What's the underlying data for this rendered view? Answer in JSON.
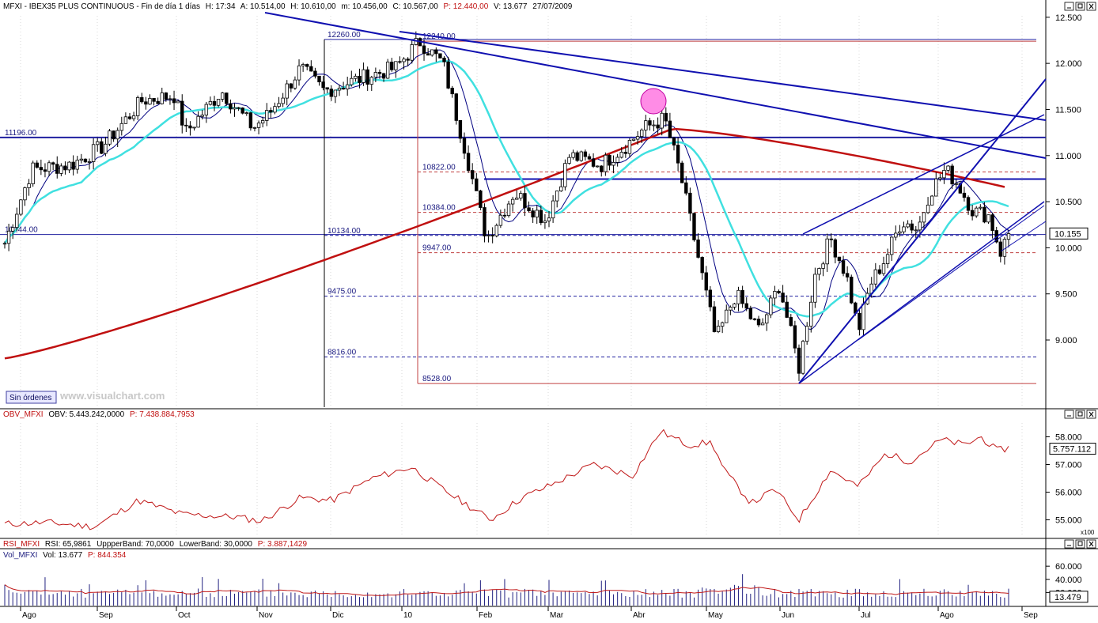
{
  "colors": {
    "price": "#000000",
    "ma_short": "#000080",
    "ma_mid": "#40e0e0",
    "ma_long": "#c01010",
    "trendline": "#1010b0",
    "level_blue": "#2020a0",
    "level_red": "#c04040",
    "obv": "#c01818",
    "volume": "#202080",
    "volume_avg": "#c01818",
    "highlight": "#ff66dd",
    "label_text": "#1a1a80"
  },
  "header": {
    "main": "MFXI - IBEX35 PLUS CONTINUOUS - Fin de día 1 días",
    "h": "H: 17:34",
    "a": "A: 10.514,00",
    "hi": "H: 10.610,00",
    "m": "m: 10.456,00",
    "c": "C: 10.567,00",
    "p": "P: 12.440,00",
    "v": "V: 13.677",
    "date": "27/07/2009"
  },
  "badge": "Sin órdenes",
  "watermark": "www.visualchart.com",
  "window_icons": [
    "minimize-icon",
    "restore-icon",
    "close-icon"
  ],
  "obv_header": {
    "name": "OBV_MFXI",
    "obv": "OBV: 5.443.242,0000",
    "p": "P: 7.438.884,7953"
  },
  "rsi_header": {
    "name": "RSI_MFXI",
    "rsi": "RSI: 65,9861",
    "upper": "UppperBand: 70,0000",
    "lower": "LowerBand: 30,0000",
    "p": "P: 3.887,1429"
  },
  "vol_header": {
    "name": "Vol_MFXI",
    "vol": "Vol: 13.677",
    "p": "P: 844.354"
  },
  "x100_label": "x100",
  "chart_data": [
    {
      "type": "candlestick",
      "panel": "price",
      "x_ticks": [
        "Ago",
        "Sep",
        "Oct",
        "Nov",
        "Dic",
        "10",
        "Feb",
        "Mar",
        "Abr",
        "May",
        "Jun",
        "Jul",
        "Ago",
        "Sep"
      ],
      "y_ticks": [
        "12.500",
        "12.000",
        "11.500",
        "11.000",
        "10.500",
        "10.000",
        "9.500",
        "9.000"
      ],
      "ylim": [
        8400,
        12550
      ],
      "current_value": "10.155",
      "levels": [
        {
          "value": 12260,
          "label": "12260.00"
        },
        {
          "value": 12240,
          "label": "12240.00"
        },
        {
          "value": 11196,
          "label": "11196.00"
        },
        {
          "value": 10822,
          "label": "10822.00"
        },
        {
          "value": 10384,
          "label": "10384.00"
        },
        {
          "value": 10144,
          "label": "10144.00"
        },
        {
          "value": 10134,
          "label": "10134.00"
        },
        {
          "value": 9947,
          "label": "9947.00"
        },
        {
          "value": 9475,
          "label": "9475.00"
        },
        {
          "value": 8816,
          "label": "8816.00"
        },
        {
          "value": 8528,
          "label": "8528.00"
        }
      ],
      "key_points": [
        {
          "x": "Ago",
          "close": 10000
        },
        {
          "x": "Sep",
          "close": 11000
        },
        {
          "x": "Oct",
          "close": 11500
        },
        {
          "x": "Nov",
          "close": 11600
        },
        {
          "x": "Dic",
          "close": 11800
        },
        {
          "x": "10",
          "close": 12220
        },
        {
          "x": "Feb",
          "close": 10100
        },
        {
          "x": "Mar",
          "close": 11050
        },
        {
          "x": "Abr",
          "close": 11250
        },
        {
          "x": "May",
          "close": 9400
        },
        {
          "x": "Jun",
          "close": 8900
        },
        {
          "x": "Jul",
          "close": 9500
        },
        {
          "x": "Ago",
          "close": 10900
        },
        {
          "x": "Sep",
          "close": 10155
        }
      ]
    },
    {
      "type": "line",
      "panel": "obv",
      "y_ticks": [
        "58.000",
        "57.000",
        "56.000",
        "55.000"
      ],
      "ylim": [
        54500,
        58500
      ],
      "current_value": "5.757.112"
    },
    {
      "type": "bar",
      "panel": "volume",
      "y_ticks": [
        "60.000",
        "40.000",
        "20.000"
      ],
      "ylim": [
        0,
        65000
      ],
      "current_value": "13.479"
    }
  ]
}
